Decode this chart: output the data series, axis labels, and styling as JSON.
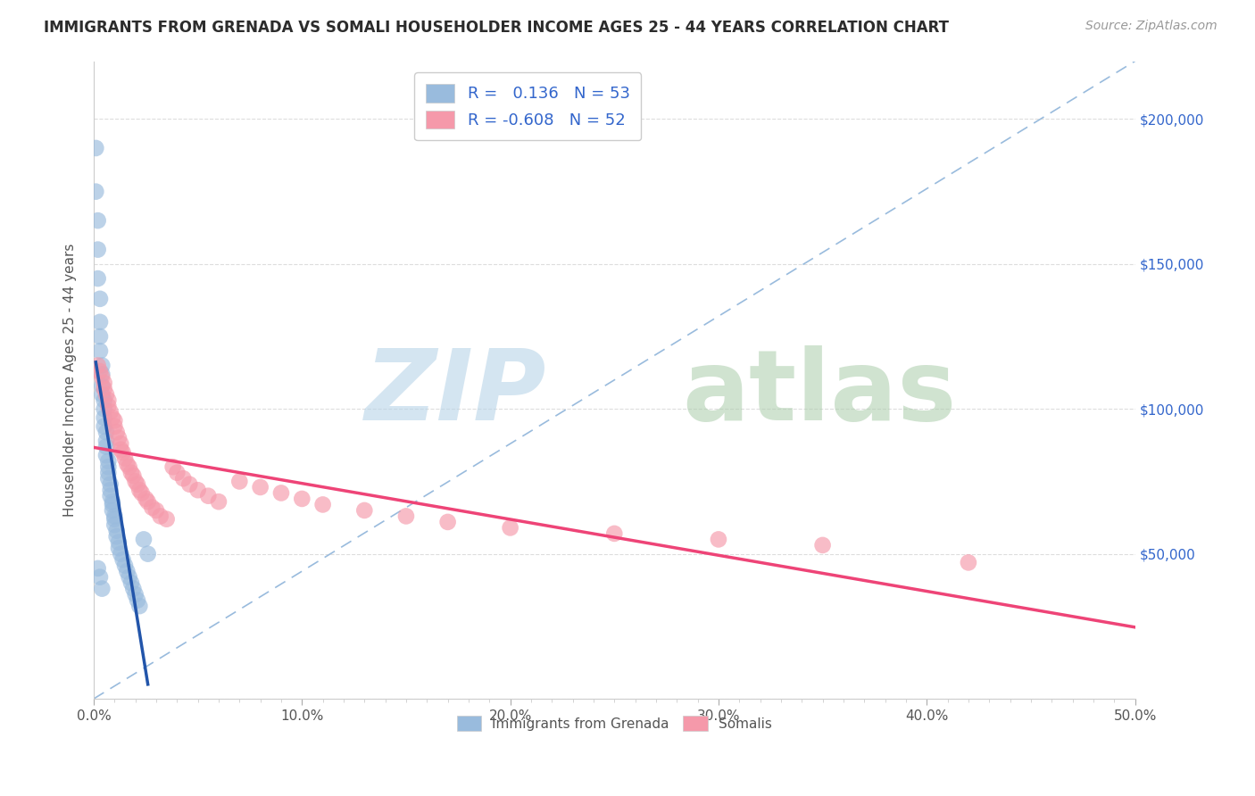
{
  "title": "IMMIGRANTS FROM GRENADA VS SOMALI HOUSEHOLDER INCOME AGES 25 - 44 YEARS CORRELATION CHART",
  "source": "Source: ZipAtlas.com",
  "ylabel": "Householder Income Ages 25 - 44 years",
  "xlim": [
    0.0,
    0.5
  ],
  "ylim": [
    0,
    220000
  ],
  "legend_label1": "Immigrants from Grenada",
  "legend_label2": "Somalis",
  "title_color": "#2c2c2c",
  "blue_scatter": "#99bbdd",
  "pink_scatter": "#f599aa",
  "blue_line_color": "#2255aa",
  "pink_line_color": "#ee4477",
  "dashed_line_color": "#99bbdd",
  "right_tick_color": "#3366cc",
  "grenada_x": [
    0.001,
    0.001,
    0.002,
    0.002,
    0.002,
    0.003,
    0.003,
    0.003,
    0.003,
    0.004,
    0.004,
    0.004,
    0.004,
    0.005,
    0.005,
    0.005,
    0.005,
    0.006,
    0.006,
    0.006,
    0.006,
    0.007,
    0.007,
    0.007,
    0.007,
    0.008,
    0.008,
    0.008,
    0.009,
    0.009,
    0.009,
    0.01,
    0.01,
    0.01,
    0.011,
    0.011,
    0.012,
    0.012,
    0.013,
    0.014,
    0.015,
    0.016,
    0.017,
    0.018,
    0.019,
    0.02,
    0.021,
    0.022,
    0.024,
    0.026,
    0.002,
    0.003,
    0.004
  ],
  "grenada_y": [
    190000,
    175000,
    165000,
    155000,
    145000,
    138000,
    130000,
    125000,
    120000,
    115000,
    112000,
    108000,
    105000,
    103000,
    100000,
    97000,
    94000,
    92000,
    89000,
    87000,
    84000,
    82000,
    80000,
    78000,
    76000,
    74000,
    72000,
    70000,
    68000,
    67000,
    65000,
    63000,
    62000,
    60000,
    58000,
    56000,
    54000,
    52000,
    50000,
    48000,
    46000,
    44000,
    42000,
    40000,
    38000,
    36000,
    34000,
    32000,
    55000,
    50000,
    45000,
    42000,
    38000
  ],
  "somali_x": [
    0.002,
    0.003,
    0.004,
    0.005,
    0.005,
    0.006,
    0.007,
    0.007,
    0.008,
    0.009,
    0.01,
    0.01,
    0.011,
    0.012,
    0.013,
    0.013,
    0.014,
    0.015,
    0.016,
    0.017,
    0.018,
    0.019,
    0.02,
    0.021,
    0.022,
    0.023,
    0.025,
    0.026,
    0.028,
    0.03,
    0.032,
    0.035,
    0.038,
    0.04,
    0.043,
    0.046,
    0.05,
    0.055,
    0.06,
    0.07,
    0.08,
    0.09,
    0.1,
    0.11,
    0.13,
    0.15,
    0.17,
    0.2,
    0.25,
    0.3,
    0.35,
    0.42
  ],
  "somali_y": [
    115000,
    113000,
    111000,
    109000,
    107000,
    105000,
    103000,
    101000,
    99000,
    97000,
    96000,
    94000,
    92000,
    90000,
    88000,
    86000,
    85000,
    83000,
    81000,
    80000,
    78000,
    77000,
    75000,
    74000,
    72000,
    71000,
    69000,
    68000,
    66000,
    65000,
    63000,
    62000,
    80000,
    78000,
    76000,
    74000,
    72000,
    70000,
    68000,
    75000,
    73000,
    71000,
    69000,
    67000,
    65000,
    63000,
    61000,
    59000,
    57000,
    55000,
    53000,
    47000
  ]
}
